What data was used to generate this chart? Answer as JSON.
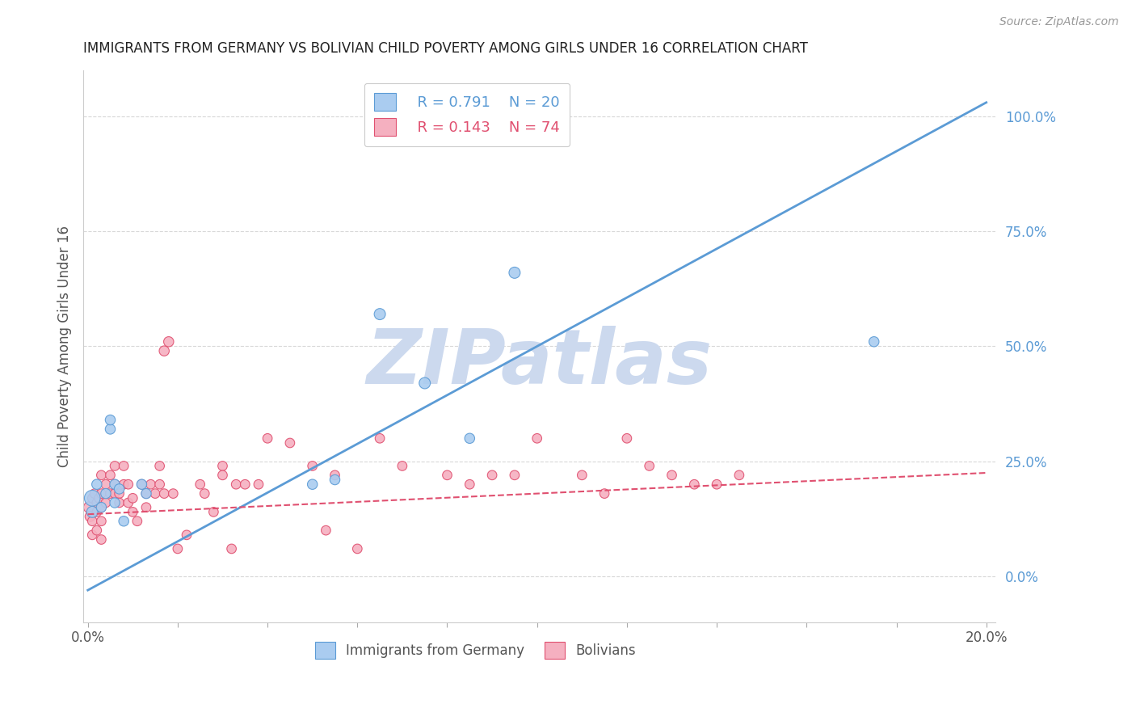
{
  "title": "IMMIGRANTS FROM GERMANY VS BOLIVIAN CHILD POVERTY AMONG GIRLS UNDER 16 CORRELATION CHART",
  "source": "Source: ZipAtlas.com",
  "ylabel": "Child Poverty Among Girls Under 16",
  "background_color": "#ffffff",
  "grid_color": "#d8d8d8",
  "title_color": "#222222",
  "source_color": "#999999",
  "ylabel_color": "#555555",
  "ytick_color": "#5b9bd5",
  "germany_color": "#aaccf0",
  "germany_edge": "#5b9bd5",
  "bolivia_color": "#f5b0c0",
  "bolivia_edge": "#e05070",
  "legend_r1": "R = 0.791",
  "legend_n1": "N = 20",
  "legend_r2": "R = 0.143",
  "legend_n2": "N = 74",
  "germany_scatter_x": [
    0.001,
    0.001,
    0.002,
    0.003,
    0.004,
    0.005,
    0.005,
    0.006,
    0.006,
    0.007,
    0.008,
    0.012,
    0.013,
    0.05,
    0.055,
    0.065,
    0.075,
    0.085,
    0.095,
    0.175
  ],
  "germany_scatter_y": [
    17,
    14,
    20,
    15,
    18,
    32,
    34,
    20,
    16,
    19,
    12,
    20,
    18,
    20,
    21,
    57,
    42,
    30,
    66,
    51
  ],
  "germany_sizes": [
    200,
    100,
    80,
    80,
    80,
    80,
    80,
    80,
    80,
    80,
    80,
    80,
    80,
    80,
    80,
    100,
    100,
    80,
    100,
    80
  ],
  "bolivia_scatter_x": [
    0.0003,
    0.0005,
    0.001,
    0.001,
    0.001,
    0.0015,
    0.002,
    0.002,
    0.002,
    0.0025,
    0.003,
    0.003,
    0.003,
    0.003,
    0.003,
    0.004,
    0.004,
    0.005,
    0.005,
    0.006,
    0.006,
    0.006,
    0.007,
    0.007,
    0.008,
    0.008,
    0.009,
    0.009,
    0.01,
    0.01,
    0.011,
    0.012,
    0.013,
    0.013,
    0.014,
    0.015,
    0.016,
    0.016,
    0.017,
    0.017,
    0.018,
    0.019,
    0.02,
    0.022,
    0.025,
    0.026,
    0.028,
    0.03,
    0.03,
    0.032,
    0.033,
    0.035,
    0.038,
    0.04,
    0.045,
    0.05,
    0.053,
    0.055,
    0.06,
    0.065,
    0.07,
    0.08,
    0.085,
    0.09,
    0.095,
    0.1,
    0.11,
    0.115,
    0.12,
    0.125,
    0.13,
    0.135,
    0.14,
    0.145
  ],
  "bolivia_scatter_y": [
    15,
    13,
    17,
    12,
    9,
    18,
    16,
    14,
    10,
    17,
    22,
    18,
    15,
    12,
    8,
    20,
    16,
    22,
    18,
    24,
    20,
    18,
    18,
    16,
    24,
    20,
    20,
    16,
    17,
    14,
    12,
    20,
    18,
    15,
    20,
    18,
    24,
    20,
    49,
    18,
    51,
    18,
    6,
    9,
    20,
    18,
    14,
    24,
    22,
    6,
    20,
    20,
    20,
    30,
    29,
    24,
    10,
    22,
    6,
    30,
    24,
    22,
    20,
    22,
    22,
    30,
    22,
    18,
    30,
    24,
    22,
    20,
    20,
    22
  ],
  "bolivia_sizes": [
    100,
    80,
    70,
    70,
    70,
    70,
    70,
    70,
    70,
    70,
    70,
    70,
    70,
    70,
    70,
    70,
    70,
    70,
    70,
    70,
    70,
    70,
    70,
    70,
    70,
    70,
    70,
    70,
    70,
    70,
    70,
    70,
    70,
    70,
    70,
    70,
    70,
    70,
    80,
    70,
    80,
    70,
    70,
    70,
    70,
    70,
    70,
    70,
    70,
    70,
    70,
    70,
    70,
    70,
    70,
    70,
    70,
    70,
    70,
    70,
    70,
    70,
    70,
    70,
    70,
    70,
    70,
    70,
    70,
    70,
    70,
    70,
    70,
    70
  ],
  "blue_line_x": [
    0.0,
    0.2
  ],
  "blue_line_y": [
    -3,
    103
  ],
  "pink_line_x": [
    0.0,
    0.2
  ],
  "pink_line_y": [
    13.5,
    22.5
  ],
  "xlim": [
    -0.001,
    0.202
  ],
  "ylim": [
    -10,
    110
  ],
  "yticks_right_vals": [
    0,
    25,
    50,
    75,
    100
  ],
  "xtick_positions": [
    0.0,
    0.02,
    0.04,
    0.06,
    0.08,
    0.1,
    0.12,
    0.14,
    0.16,
    0.18,
    0.2
  ],
  "watermark_text": "ZIPatlas",
  "watermark_color": "#ccd9ee",
  "watermark_fontsize": 68
}
